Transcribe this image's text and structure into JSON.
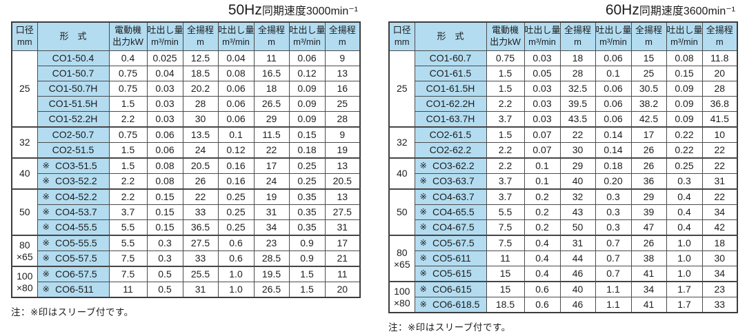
{
  "colors": {
    "header_blue": "#b3dcf0",
    "border_dark": "#3c3c3c",
    "text": "#1d1d1d",
    "background": "#ffffff"
  },
  "sleeve_mark": "※",
  "headers": {
    "bore_line1": "口径",
    "bore_line2": "mm",
    "model": "形　式",
    "motor_line1": "電動機",
    "motor_line2": "出力kW",
    "discharge_line1": "吐出し量",
    "discharge_line2": "m³/min",
    "head_line1": "全揚程",
    "head_line2": "m"
  },
  "tables": [
    {
      "title_freq": "50Hz",
      "title_rest": "同期速度3000min⁻¹",
      "note": "注：※印はスリーブ付です。",
      "groups": [
        {
          "bore": [
            "25"
          ],
          "rows": [
            {
              "sleeve": false,
              "model": "CO1-50.4",
              "kw": "0.4",
              "values": [
                "0.025",
                "12.5",
                "0.04",
                "11",
                "0.06",
                "9"
              ]
            },
            {
              "sleeve": false,
              "model": "CO1-50.7",
              "kw": "0.75",
              "values": [
                "0.04",
                "18.5",
                "0.08",
                "16.5",
                "0.12",
                "13"
              ]
            },
            {
              "sleeve": false,
              "model": "CO1-50.7H",
              "kw": "0.75",
              "values": [
                "0.03",
                "20.2",
                "0.06",
                "18",
                "0.09",
                "16"
              ]
            },
            {
              "sleeve": false,
              "model": "CO1-51.5H",
              "kw": "1.5",
              "values": [
                "0.03",
                "28",
                "0.06",
                "26.5",
                "0.09",
                "25"
              ]
            },
            {
              "sleeve": false,
              "model": "CO1-52.2H",
              "kw": "2.2",
              "values": [
                "0.03",
                "30",
                "0.06",
                "29",
                "0.09",
                "28"
              ]
            }
          ]
        },
        {
          "bore": [
            "32"
          ],
          "rows": [
            {
              "sleeve": false,
              "model": "CO2-50.7",
              "kw": "0.75",
              "values": [
                "0.06",
                "13.5",
                "0.1",
                "11.5",
                "0.15",
                "9"
              ]
            },
            {
              "sleeve": false,
              "model": "CO2-51.5",
              "kw": "1.5",
              "values": [
                "0.06",
                "24",
                "0.12",
                "22",
                "0.18",
                "19"
              ]
            }
          ]
        },
        {
          "bore": [
            "40"
          ],
          "rows": [
            {
              "sleeve": true,
              "model": "CO3-51.5",
              "kw": "1.5",
              "values": [
                "0.08",
                "20.5",
                "0.16",
                "17",
                "0.25",
                "13"
              ]
            },
            {
              "sleeve": true,
              "model": "CO3-52.2",
              "kw": "2.2",
              "values": [
                "0.08",
                "26",
                "0.16",
                "24",
                "0.25",
                "20.5"
              ]
            }
          ]
        },
        {
          "bore": [
            "50"
          ],
          "rows": [
            {
              "sleeve": true,
              "model": "CO4-52.2",
              "kw": "2.2",
              "values": [
                "0.15",
                "22",
                "0.25",
                "19",
                "0.35",
                "13"
              ]
            },
            {
              "sleeve": true,
              "model": "CO4-53.7",
              "kw": "3.7",
              "values": [
                "0.15",
                "33",
                "0.25",
                "31",
                "0.35",
                "27.5"
              ]
            },
            {
              "sleeve": true,
              "model": "CO4-55.5",
              "kw": "5.5",
              "values": [
                "0.15",
                "36.5",
                "0.25",
                "34",
                "0.35",
                "31"
              ]
            }
          ]
        },
        {
          "bore": [
            "80",
            "×65"
          ],
          "rows": [
            {
              "sleeve": true,
              "model": "CO5-55.5",
              "kw": "5.5",
              "values": [
                "0.3",
                "27.5",
                "0.6",
                "23",
                "0.9",
                "17"
              ]
            },
            {
              "sleeve": true,
              "model": "CO5-57.5",
              "kw": "7.5",
              "values": [
                "0.3",
                "33",
                "0.6",
                "28.5",
                "0.9",
                "21"
              ]
            }
          ]
        },
        {
          "bore": [
            "100",
            "×80"
          ],
          "rows": [
            {
              "sleeve": true,
              "model": "CO6-57.5",
              "kw": "7.5",
              "values": [
                "0.5",
                "25.5",
                "1.0",
                "19.5",
                "1.5",
                "11"
              ]
            },
            {
              "sleeve": true,
              "model": "CO6-511",
              "kw": "11",
              "values": [
                "0.5",
                "31",
                "1.0",
                "26.5",
                "1.5",
                "20"
              ]
            }
          ]
        }
      ]
    },
    {
      "title_freq": "60Hz",
      "title_rest": "同期速度3600min⁻¹",
      "note": "注：※印はスリーブ付です。",
      "groups": [
        {
          "bore": [
            "25"
          ],
          "rows": [
            {
              "sleeve": false,
              "model": "CO1-60.7",
              "kw": "0.75",
              "values": [
                "0.03",
                "18",
                "0.06",
                "15",
                "0.08",
                "11.8"
              ]
            },
            {
              "sleeve": false,
              "model": "CO1-61.5",
              "kw": "1.5",
              "values": [
                "0.05",
                "28",
                "0.1",
                "25",
                "0.15",
                "20"
              ]
            },
            {
              "sleeve": false,
              "model": "CO1-61.5H",
              "kw": "1.5",
              "values": [
                "0.03",
                "32.5",
                "0.06",
                "30.5",
                "0.09",
                "28"
              ]
            },
            {
              "sleeve": false,
              "model": "CO1-62.2H",
              "kw": "2.2",
              "values": [
                "0.03",
                "39.5",
                "0.06",
                "38.2",
                "0.09",
                "36.8"
              ]
            },
            {
              "sleeve": false,
              "model": "CO1-63.7H",
              "kw": "3.7",
              "values": [
                "0.03",
                "43.5",
                "0.06",
                "42.5",
                "0.09",
                "41.5"
              ]
            }
          ]
        },
        {
          "bore": [
            "32"
          ],
          "rows": [
            {
              "sleeve": false,
              "model": "CO2-61.5",
              "kw": "1.5",
              "values": [
                "0.07",
                "22",
                "0.14",
                "17",
                "0.22",
                "10"
              ]
            },
            {
              "sleeve": false,
              "model": "CO2-62.2",
              "kw": "2.2",
              "values": [
                "0.07",
                "30",
                "0.14",
                "26",
                "0.22",
                "22"
              ]
            }
          ]
        },
        {
          "bore": [
            "40"
          ],
          "rows": [
            {
              "sleeve": true,
              "model": "CO3-62.2",
              "kw": "2.2",
              "values": [
                "0.1",
                "29",
                "0.18",
                "26",
                "0.25",
                "22"
              ]
            },
            {
              "sleeve": true,
              "model": "CO3-63.7",
              "kw": "3.7",
              "values": [
                "0.1",
                "40",
                "0.20",
                "36",
                "0.3",
                "31"
              ]
            }
          ]
        },
        {
          "bore": [
            "50"
          ],
          "rows": [
            {
              "sleeve": true,
              "model": "CO4-63.7",
              "kw": "3.7",
              "values": [
                "0.2",
                "32",
                "0.3",
                "29",
                "0.4",
                "22"
              ]
            },
            {
              "sleeve": true,
              "model": "CO4-65.5",
              "kw": "5.5",
              "values": [
                "0.2",
                "43",
                "0.3",
                "39",
                "0.4",
                "34"
              ]
            },
            {
              "sleeve": true,
              "model": "CO4-67.5",
              "kw": "7.5",
              "values": [
                "0.2",
                "50",
                "0.3",
                "47",
                "0.4",
                "42"
              ]
            }
          ]
        },
        {
          "bore": [
            "80",
            "×65"
          ],
          "rows": [
            {
              "sleeve": true,
              "model": "CO5-67.5",
              "kw": "7.5",
              "values": [
                "0.4",
                "31",
                "0.7",
                "26",
                "1.0",
                "18"
              ]
            },
            {
              "sleeve": true,
              "model": "CO5-611",
              "kw": "11",
              "values": [
                "0.4",
                "44",
                "0.7",
                "38",
                "1.0",
                "30"
              ]
            },
            {
              "sleeve": true,
              "model": "CO5-615",
              "kw": "15",
              "values": [
                "0.4",
                "46",
                "0.7",
                "41",
                "1.0",
                "34"
              ]
            }
          ]
        },
        {
          "bore": [
            "100",
            "×80"
          ],
          "rows": [
            {
              "sleeve": true,
              "model": "CO6-615",
              "kw": "15",
              "values": [
                "0.6",
                "40",
                "1.1",
                "34",
                "1.7",
                "23"
              ]
            },
            {
              "sleeve": true,
              "model": "CO6-618.5",
              "kw": "18.5",
              "values": [
                "0.6",
                "46",
                "1.1",
                "41",
                "1.7",
                "33"
              ]
            }
          ]
        }
      ]
    }
  ]
}
